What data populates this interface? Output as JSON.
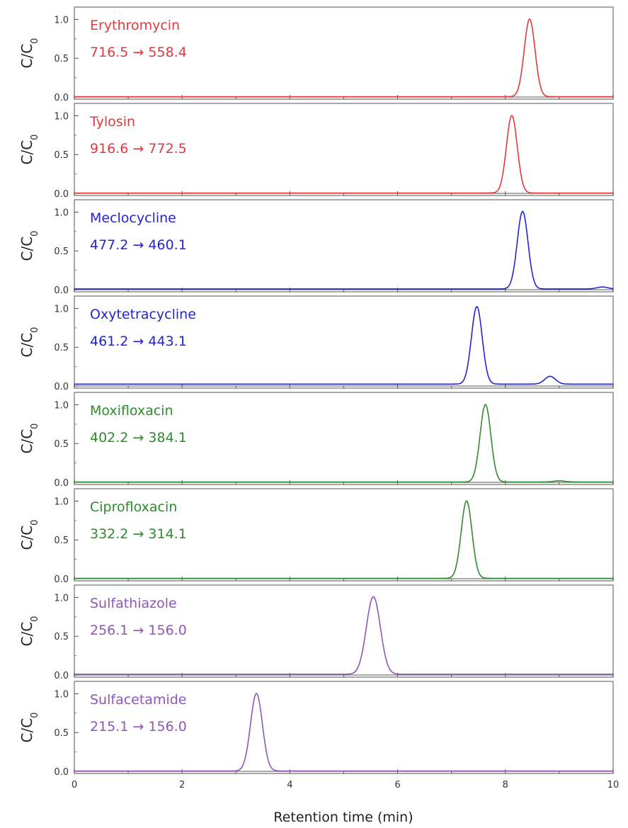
{
  "chart_data": {
    "type": "line",
    "xlabel": "Retention time (min)",
    "xlim": [
      0,
      10
    ],
    "x_ticks": [
      "0",
      "2",
      "4",
      "6",
      "8",
      "10"
    ],
    "ylabel": "C/C",
    "ylabel_subscript": "0",
    "ylim": [
      0,
      1.05
    ],
    "y_ticks": [
      "0.0",
      "0.5",
      "1.0"
    ],
    "grid": false,
    "panels": [
      {
        "name": "Erythromycin",
        "transition": "716.5 → 558.4",
        "color": "#e03a3e",
        "peaks": [
          {
            "center": 8.45,
            "height": 1.0,
            "width": 0.1
          }
        ],
        "baseline": 0.005
      },
      {
        "name": "Tylosin",
        "transition": "916.6 → 772.5",
        "color": "#e03a3e",
        "peaks": [
          {
            "center": 8.12,
            "height": 1.0,
            "width": 0.1
          }
        ],
        "baseline": 0.005
      },
      {
        "name": "Meclocycline",
        "transition": "477.2 → 460.1",
        "color": "#2323d6",
        "peaks": [
          {
            "center": 8.32,
            "height": 1.0,
            "width": 0.1
          },
          {
            "center": 9.8,
            "height": 0.025,
            "width": 0.1
          }
        ],
        "baseline": 0.01
      },
      {
        "name": "Oxytetracycline",
        "transition": "461.2 → 443.1",
        "color": "#2323d6",
        "peaks": [
          {
            "center": 7.47,
            "height": 1.0,
            "width": 0.1
          },
          {
            "center": 8.83,
            "height": 0.1,
            "width": 0.1
          }
        ],
        "baseline": 0.025
      },
      {
        "name": "Moxifloxacin",
        "transition": "402.2 → 384.1",
        "color": "#2e8b2e",
        "peaks": [
          {
            "center": 7.63,
            "height": 1.0,
            "width": 0.1
          },
          {
            "center": 9.0,
            "height": 0.015,
            "width": 0.1
          }
        ],
        "baseline": 0.005
      },
      {
        "name": "Ciprofloxacin",
        "transition": "332.2 → 314.1",
        "color": "#2e8b2e",
        "peaks": [
          {
            "center": 7.28,
            "height": 1.0,
            "width": 0.1
          }
        ],
        "baseline": 0.005
      },
      {
        "name": "Sulfathiazole",
        "transition": "256.1 → 156.0",
        "color": "#9055b8",
        "peaks": [
          {
            "center": 5.55,
            "height": 1.0,
            "width": 0.13
          }
        ],
        "baseline": 0.01
      },
      {
        "name": "Sulfacetamide",
        "transition": "215.1 → 156.0",
        "color": "#9055b8",
        "peaks": [
          {
            "center": 3.38,
            "height": 1.0,
            "width": 0.11
          }
        ],
        "baseline": 0.005
      }
    ]
  }
}
